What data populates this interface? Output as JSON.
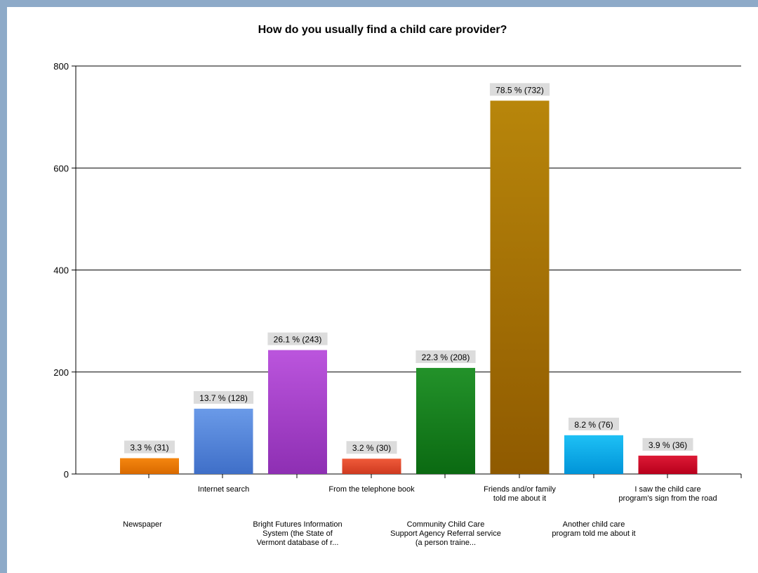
{
  "chart_data": {
    "type": "bar",
    "title": "How do you usually find a child care provider?",
    "xlabel": "",
    "ylabel": "",
    "ylim": [
      0,
      800
    ],
    "yticks": [
      0,
      200,
      400,
      600,
      800
    ],
    "grid": true,
    "legend": "none",
    "categories": [
      "Newspaper",
      "Internet search",
      "Bright Futures Information System (the State of Vermont database of r...",
      "From the telephone book",
      "Community Child Care Support Agency Referral service (a person traine...",
      "Friends and/or family told me about it",
      "Another child care program told me about it",
      "I saw the child care program's sign from the road"
    ],
    "category_lines": [
      [
        "Newspaper"
      ],
      [
        "Internet search"
      ],
      [
        "Bright Futures Information",
        "System (the State of",
        "Vermont database of r..."
      ],
      [
        "From the telephone book"
      ],
      [
        "Community Child Care",
        "Support Agency Referral service",
        "(a person traine..."
      ],
      [
        "Friends and/or family",
        "told me about it"
      ],
      [
        "Another child care",
        "program told me about it"
      ],
      [
        "I saw the child care",
        "program's sign from the road"
      ]
    ],
    "values": [
      31,
      128,
      243,
      30,
      208,
      732,
      76,
      36
    ],
    "percents": [
      3.3,
      13.7,
      26.1,
      3.2,
      22.3,
      78.5,
      8.2,
      3.9
    ],
    "data_labels": [
      "3.3 % (31)",
      "13.7 % (128)",
      "26.1 % (243)",
      "3.2 % (30)",
      "22.3 % (208)",
      "78.5 % (732)",
      "8.2 % (76)",
      "3.9 % (36)"
    ],
    "colors": [
      [
        "#f5860f",
        "#d96a00"
      ],
      [
        "#6a9ae8",
        "#3f6fc8"
      ],
      [
        "#bb55dd",
        "#8e2fb3"
      ],
      [
        "#ef5a3a",
        "#cf3a20"
      ],
      [
        "#23922a",
        "#0b6a12"
      ],
      [
        "#b8860b",
        "#8f5a00"
      ],
      [
        "#1ec0f5",
        "#0094d8"
      ],
      [
        "#dd1a36",
        "#b8001c"
      ]
    ]
  }
}
